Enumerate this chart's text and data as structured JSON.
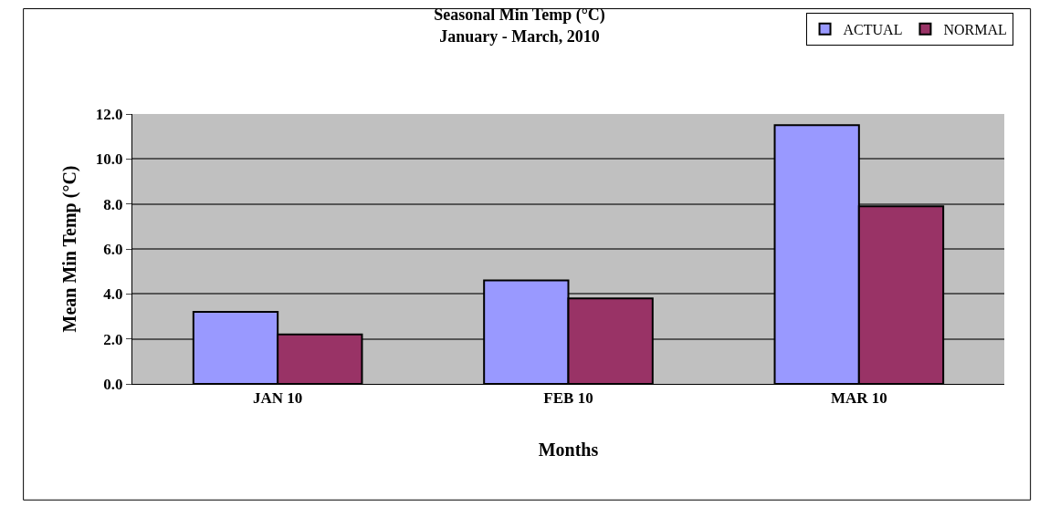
{
  "chart_data": {
    "type": "bar",
    "title": "Seasonal Min Temp (°C)\nJanuary - March, 2010",
    "xlabel": "Months",
    "ylabel": "Mean Min Temp (°C)",
    "categories": [
      "JAN 10",
      "FEB 10",
      "MAR 10"
    ],
    "series": [
      {
        "name": "ACTUAL",
        "color": "#9999ff",
        "values": [
          3.2,
          4.6,
          11.5
        ]
      },
      {
        "name": "NORMAL",
        "color": "#993366",
        "values": [
          2.2,
          3.8,
          7.9
        ]
      }
    ],
    "ylim": [
      0,
      12
    ],
    "yticks": [
      {
        "value": 0,
        "label": "0.0"
      },
      {
        "value": 2,
        "label": "2.0"
      },
      {
        "value": 4,
        "label": "4.0"
      },
      {
        "value": 6,
        "label": "6.0"
      },
      {
        "value": 8,
        "label": "8.0"
      },
      {
        "value": 10,
        "label": "10.0"
      },
      {
        "value": 12,
        "label": "12.0"
      }
    ],
    "grid": "y",
    "legend": "top right"
  }
}
